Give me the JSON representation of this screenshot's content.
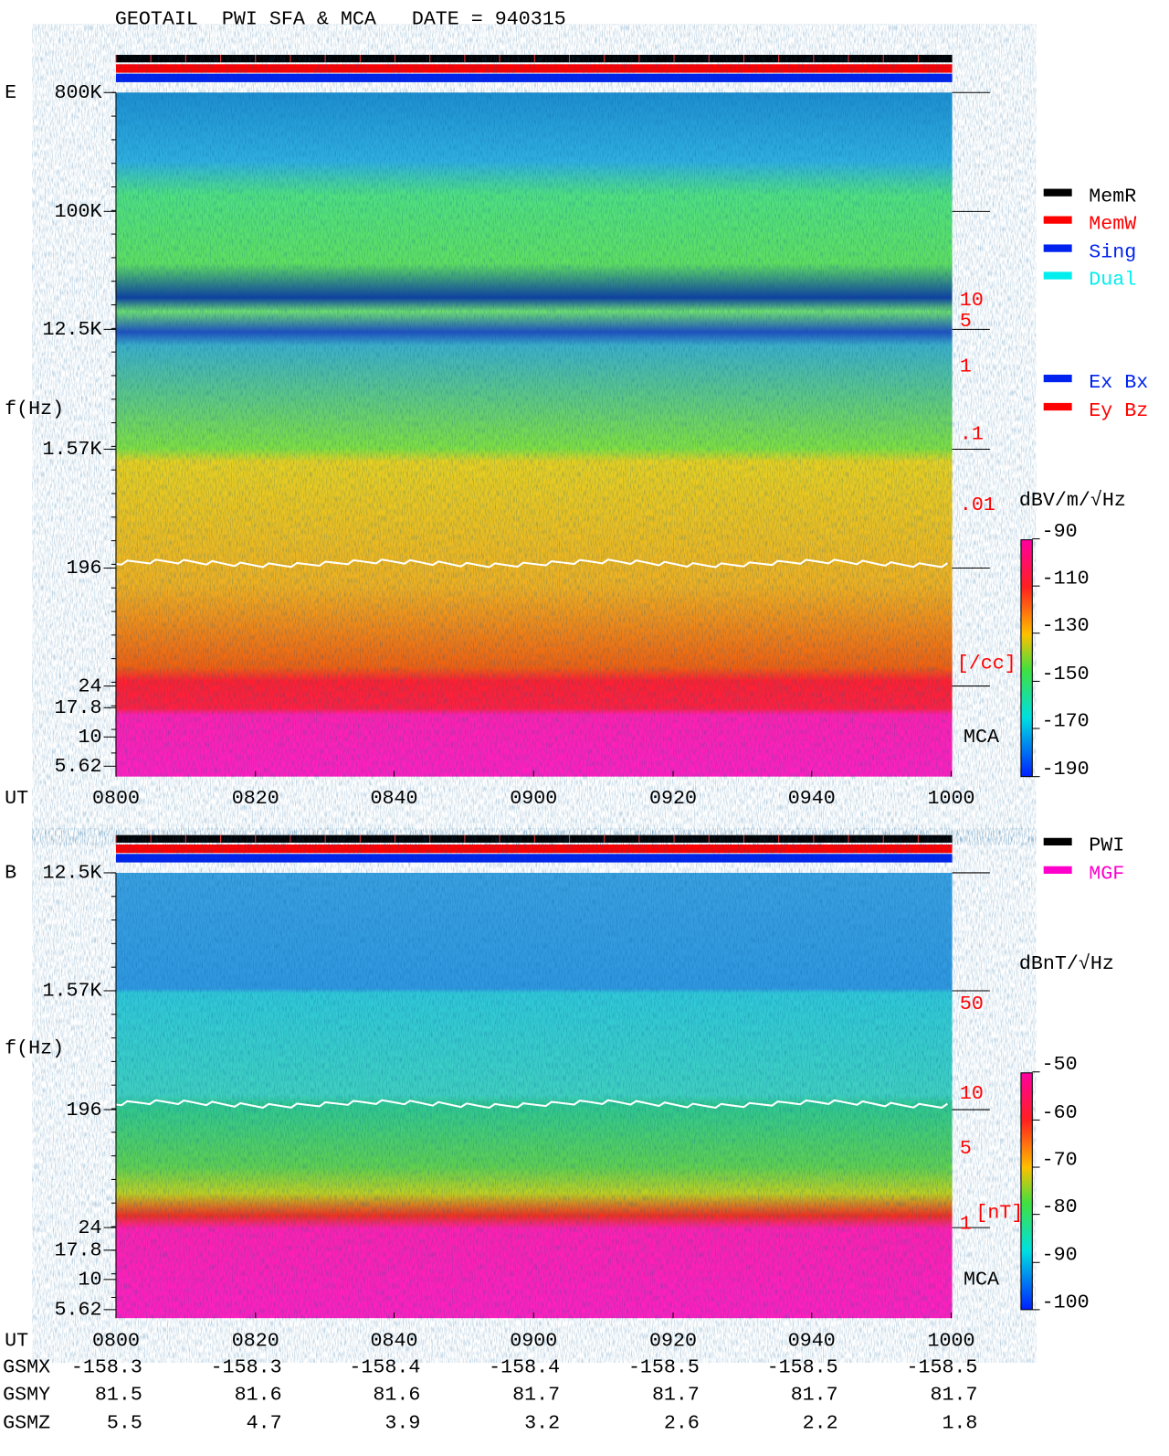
{
  "header": {
    "title": "GEOTAIL  PWI SFA & MCA   DATE = 940315"
  },
  "panels": [
    {
      "label": "E",
      "y_axis_label": "f(Hz)",
      "y_ticks": [
        "800K",
        "100K",
        "12.5K",
        "1.57K",
        "196",
        "24",
        "17.8",
        "10",
        "5.62"
      ],
      "x_axis_label": "UT",
      "x_ticks": [
        "0800",
        "0820",
        "0840",
        "0900",
        "0920",
        "0940",
        "1000"
      ],
      "side_scale": [
        "10",
        "5",
        "1",
        ".1",
        ".01",
        "[/cc]"
      ],
      "mca_label": "MCA",
      "legend": [
        {
          "name": "MemR",
          "color": "#000000"
        },
        {
          "name": "MemW",
          "color": "#ff0000"
        },
        {
          "name": "Sing",
          "color": "#0022ee"
        },
        {
          "name": "Dual",
          "color": "#00eeee"
        }
      ],
      "legend2": [
        {
          "name": "Ex Bx",
          "color": "#0022ee"
        },
        {
          "name": "Ey Bz",
          "color": "#ff0000"
        }
      ],
      "colorbar": {
        "label": "dBV/m/√Hz",
        "ticks": [
          "-90",
          "-110",
          "-130",
          "-150",
          "-170",
          "-190"
        ]
      }
    },
    {
      "label": "B",
      "y_axis_label": "f(Hz)",
      "y_ticks": [
        "12.5K",
        "1.57K",
        "196",
        "24",
        "17.8",
        "10",
        "5.62"
      ],
      "x_axis_label": "UT",
      "x_ticks": [
        "0800",
        "0820",
        "0840",
        "0900",
        "0920",
        "0940",
        "1000"
      ],
      "side_scale": [
        "50",
        "10",
        "5",
        "1",
        "[nT]"
      ],
      "mca_label": "MCA",
      "legend": [
        {
          "name": "PWI",
          "color": "#000000"
        },
        {
          "name": "MGF",
          "color": "#ff00cc"
        }
      ],
      "colorbar": {
        "label": "dBnT/√Hz",
        "ticks": [
          "-50",
          "-60",
          "-70",
          "-80",
          "-90",
          "-100"
        ]
      }
    }
  ],
  "orbit": {
    "rows": [
      {
        "label": "GSMX",
        "values": [
          "-158.3",
          "-158.3",
          "-158.4",
          "-158.4",
          "-158.5",
          "-158.5",
          "-158.5"
        ]
      },
      {
        "label": "GSMY",
        "values": [
          "81.5",
          "81.6",
          "81.6",
          "81.7",
          "81.7",
          "81.7",
          "81.7"
        ]
      },
      {
        "label": "GSMZ",
        "values": [
          "5.5",
          "4.7",
          "3.9",
          "3.2",
          "2.6",
          "2.2",
          "1.8"
        ]
      }
    ]
  }
}
